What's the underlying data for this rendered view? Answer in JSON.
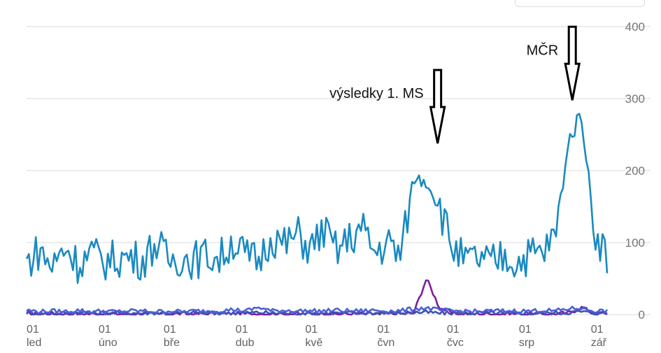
{
  "top_control": {
    "label": ""
  },
  "chart_data": {
    "type": "line",
    "title": "",
    "xlabel": "",
    "ylabel": "",
    "ylim": [
      0,
      400
    ],
    "y_axis_position": "right",
    "grid": true,
    "legend": "none",
    "x_date_range": [
      "2014-01-01",
      "2014-09-08"
    ],
    "y_ticks": [
      "400",
      "300",
      "200",
      "100",
      "0"
    ],
    "x_ticks": [
      {
        "date": "2014-01-01",
        "day": "01",
        "month": "led"
      },
      {
        "date": "2014-02-01",
        "day": "01",
        "month": "úno"
      },
      {
        "date": "2014-03-01",
        "day": "01",
        "month": "bře"
      },
      {
        "date": "2014-04-01",
        "day": "01",
        "month": "dub"
      },
      {
        "date": "2014-05-01",
        "day": "01",
        "month": "kvě"
      },
      {
        "date": "2014-06-01",
        "day": "01",
        "month": "čvn"
      },
      {
        "date": "2014-07-01",
        "day": "01",
        "month": "čvc"
      },
      {
        "date": "2014-08-01",
        "day": "01",
        "month": "srp"
      },
      {
        "date": "2014-09-01",
        "day": "01",
        "month": "zář"
      }
    ],
    "series": [
      {
        "color": "#1a8ac0",
        "weekly_values": [
          72,
          90,
          66,
          95,
          70,
          85,
          74,
          78,
          80,
          75,
          100,
          75,
          80,
          76,
          82,
          78,
          103,
          80,
          75,
          110,
          95,
          112,
          90,
          118,
          88,
          104,
          120,
          86,
          100,
          82,
          190,
          186,
          150,
          95,
          72,
          78,
          70,
          82,
          72,
          84,
          85,
          110,
          240,
          280,
          120,
          80
        ]
      },
      {
        "color": "#4a62d8",
        "weekly_values": [
          6,
          4,
          5,
          4,
          6,
          4,
          5,
          4,
          5,
          5,
          4,
          5,
          4,
          5,
          5,
          5,
          7,
          5,
          10,
          5,
          6,
          5,
          5,
          5,
          6,
          5,
          5,
          6,
          5,
          5,
          8,
          9,
          6,
          5,
          5,
          4,
          5,
          5,
          5,
          5,
          6,
          5,
          8,
          9,
          5,
          5
        ]
      },
      {
        "color": "#3f51b5",
        "weekly_values": [
          3,
          2,
          2,
          2,
          3,
          2,
          2,
          2,
          2,
          2,
          2,
          2,
          2,
          2,
          2,
          2,
          3,
          2,
          3,
          2,
          2,
          2,
          2,
          2,
          2,
          2,
          2,
          2,
          2,
          2,
          3,
          3,
          2,
          2,
          2,
          2,
          2,
          2,
          2,
          2,
          2,
          2,
          3,
          4,
          2,
          2
        ]
      },
      {
        "color": "#7b1fa2",
        "weekly_values": [
          1,
          1,
          1,
          1,
          1,
          1,
          1,
          1,
          1,
          1,
          1,
          1,
          1,
          1,
          1,
          1,
          1,
          1,
          1,
          1,
          1,
          1,
          1,
          1,
          1,
          1,
          1,
          1,
          1,
          1,
          2,
          50,
          10,
          2,
          1,
          1,
          1,
          1,
          1,
          1,
          1,
          1,
          2,
          10,
          2,
          1
        ]
      }
    ],
    "annotations": [
      {
        "text": "výsledky 1. MS",
        "date": "2014-06-27",
        "value": 230
      },
      {
        "text": "MČR",
        "date": "2014-08-24",
        "value": 290
      }
    ]
  }
}
